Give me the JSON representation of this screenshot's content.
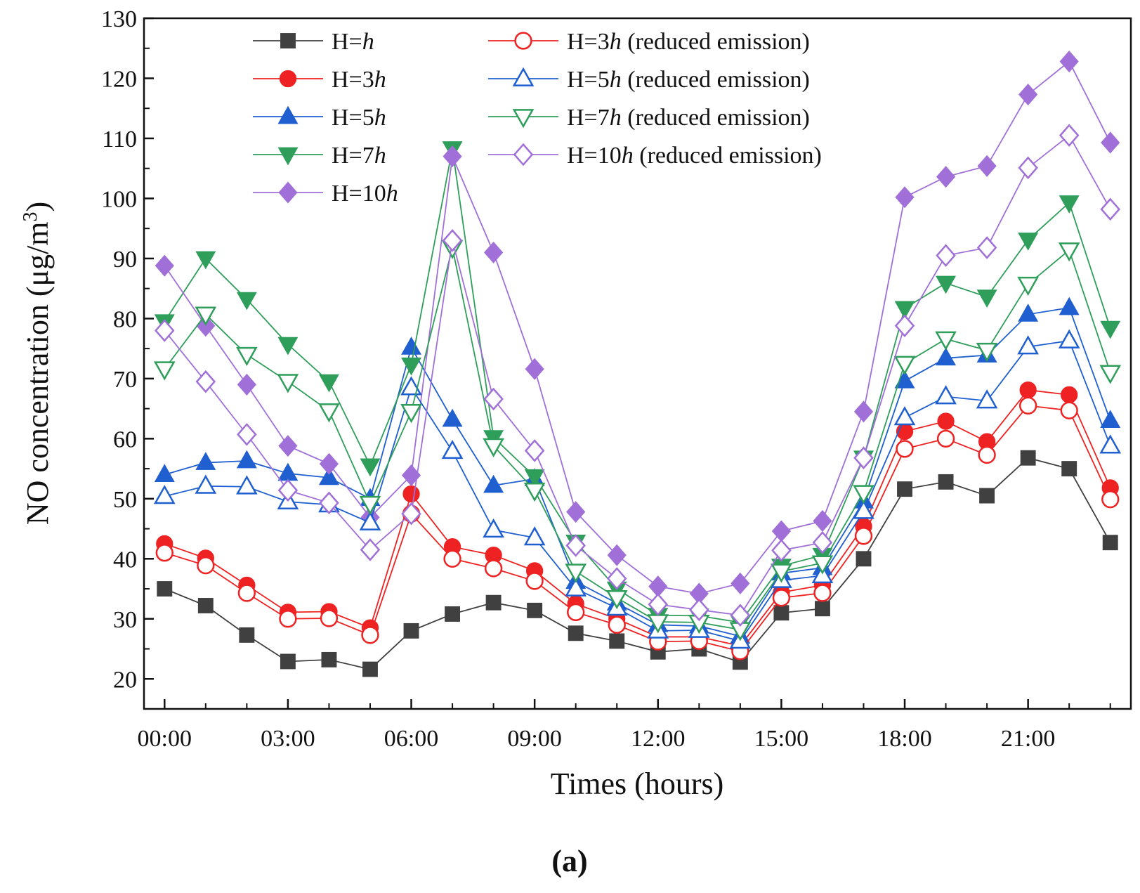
{
  "chart_data": {
    "type": "line",
    "xlabel": "Times (hours)",
    "ylabel": "NO concentration (μg/m",
    "ylabel_sup": "3",
    "ylabel_close": ")",
    "panel_label": "(a)",
    "ylim": [
      15,
      130
    ],
    "yticks": [
      20,
      30,
      40,
      50,
      60,
      70,
      80,
      90,
      100,
      110,
      120,
      130
    ],
    "x": [
      0,
      1,
      2,
      3,
      4,
      5,
      6,
      7,
      8,
      9,
      10,
      11,
      12,
      13,
      14,
      15,
      16,
      17,
      18,
      19,
      20,
      21,
      22,
      23
    ],
    "xlim": [
      -0.5,
      23.5
    ],
    "xticks": [
      {
        "x": 0,
        "label": "00:00"
      },
      {
        "x": 3,
        "label": "03:00"
      },
      {
        "x": 6,
        "label": "06:00"
      },
      {
        "x": 9,
        "label": "09:00"
      },
      {
        "x": 12,
        "label": "12:00"
      },
      {
        "x": 15,
        "label": "15:00"
      },
      {
        "x": 18,
        "label": "18:00"
      },
      {
        "x": 21,
        "label": "21:00"
      }
    ],
    "grid": false,
    "legend_position": "top-left",
    "series": [
      {
        "name_prefix": "H=",
        "name_var": "h",
        "name_suffix": "",
        "color": "#404040",
        "marker": "square",
        "filled": true,
        "values": [
          35,
          32.2,
          27.3,
          22.9,
          23.2,
          21.6,
          28,
          30.8,
          32.7,
          31.4,
          27.6,
          26.3,
          24.5,
          25,
          22.8,
          31,
          31.7,
          40,
          51.6,
          52.8,
          50.5,
          56.8,
          55,
          42.7
        ]
      },
      {
        "name_prefix": "H=3",
        "name_var": "h",
        "name_suffix": "",
        "color": "#ee2222",
        "marker": "circle",
        "filled": true,
        "values": [
          42.5,
          40.1,
          35.6,
          31.1,
          31.2,
          28.5,
          50.8,
          42,
          40.6,
          38,
          32.5,
          30,
          27,
          27,
          25.5,
          34.4,
          35.6,
          45.4,
          61.2,
          62.9,
          59.5,
          68.1,
          67.3,
          51.8
        ]
      },
      {
        "name_prefix": "H=5",
        "name_var": "h",
        "name_suffix": "",
        "color": "#1f5fd0",
        "marker": "triangle-up",
        "filled": true,
        "values": [
          54,
          56,
          56.3,
          54.2,
          53.5,
          50,
          75.2,
          63.2,
          52.2,
          53.3,
          36.2,
          32.6,
          29,
          28.8,
          27.1,
          37.6,
          38.5,
          49.6,
          69.6,
          73.4,
          73.9,
          80.7,
          81.8,
          63
        ]
      },
      {
        "name_prefix": "H=7",
        "name_var": "h",
        "name_suffix": "",
        "color": "#2e9e5a",
        "marker": "triangle-down",
        "filled": true,
        "values": [
          79.5,
          90,
          83.2,
          75.7,
          69.5,
          55.5,
          72.3,
          108.3,
          60.2,
          53.7,
          42.8,
          35,
          30.6,
          30.5,
          29.4,
          38.8,
          40.6,
          56.8,
          81.7,
          85.9,
          83.6,
          93.1,
          99.3,
          78.4
        ]
      },
      {
        "name_prefix": "H=10",
        "name_var": "h",
        "name_suffix": "",
        "color": "#a070d8",
        "marker": "diamond",
        "filled": true,
        "values": [
          88.8,
          78.8,
          69,
          58.8,
          55.8,
          46.9,
          53.9,
          107,
          91,
          71.6,
          47.8,
          40.6,
          35.4,
          34.2,
          35.9,
          44.6,
          46.3,
          64.5,
          100.2,
          103.6,
          105.4,
          117.3,
          122.8,
          109.3
        ]
      },
      {
        "name_prefix": "H=3",
        "name_var": "h",
        "name_suffix": " (reduced emission)",
        "color": "#ee2222",
        "marker": "circle",
        "filled": false,
        "values": [
          41,
          38.9,
          34.3,
          30,
          30.1,
          27.3,
          47.5,
          40,
          38.4,
          36.3,
          31.1,
          29,
          26.2,
          26.3,
          24.6,
          33.5,
          34.3,
          43.8,
          58.3,
          60,
          57.3,
          65.5,
          64.7,
          49.9
        ]
      },
      {
        "name_prefix": "H=5",
        "name_var": "h",
        "name_suffix": " (reduced emission)",
        "color": "#1f5fd0",
        "marker": "triangle-up",
        "filled": false,
        "values": [
          50.4,
          52.1,
          52,
          49.5,
          49,
          46,
          68.5,
          57.9,
          44.8,
          43.5,
          35,
          31.8,
          28,
          28.1,
          26.3,
          36.4,
          37.2,
          47.9,
          63.5,
          67,
          66.3,
          75.3,
          76.3,
          58.8
        ]
      },
      {
        "name_prefix": "H=7",
        "name_var": "h",
        "name_suffix": " (reduced emission)",
        "color": "#2e9e5a",
        "marker": "triangle-down",
        "filled": false,
        "values": [
          71.6,
          80.7,
          74,
          69.5,
          64.6,
          49.2,
          64.5,
          91.8,
          58.8,
          51.4,
          37.9,
          33.5,
          29.5,
          29.4,
          28.2,
          37.9,
          39.3,
          51,
          72.5,
          76.6,
          74.7,
          85.7,
          91.4,
          71
        ]
      },
      {
        "name_prefix": "H=10",
        "name_var": "h",
        "name_suffix": " (reduced emission)",
        "color": "#a070d8",
        "marker": "diamond",
        "filled": false,
        "values": [
          78,
          69.5,
          60.7,
          51.4,
          49.3,
          41.5,
          47.5,
          93,
          66.6,
          58,
          42.2,
          36.7,
          32.4,
          31.5,
          30.6,
          41.4,
          42.7,
          56.8,
          78.8,
          90.5,
          91.8,
          105.1,
          110.5,
          98.2
        ]
      }
    ]
  }
}
